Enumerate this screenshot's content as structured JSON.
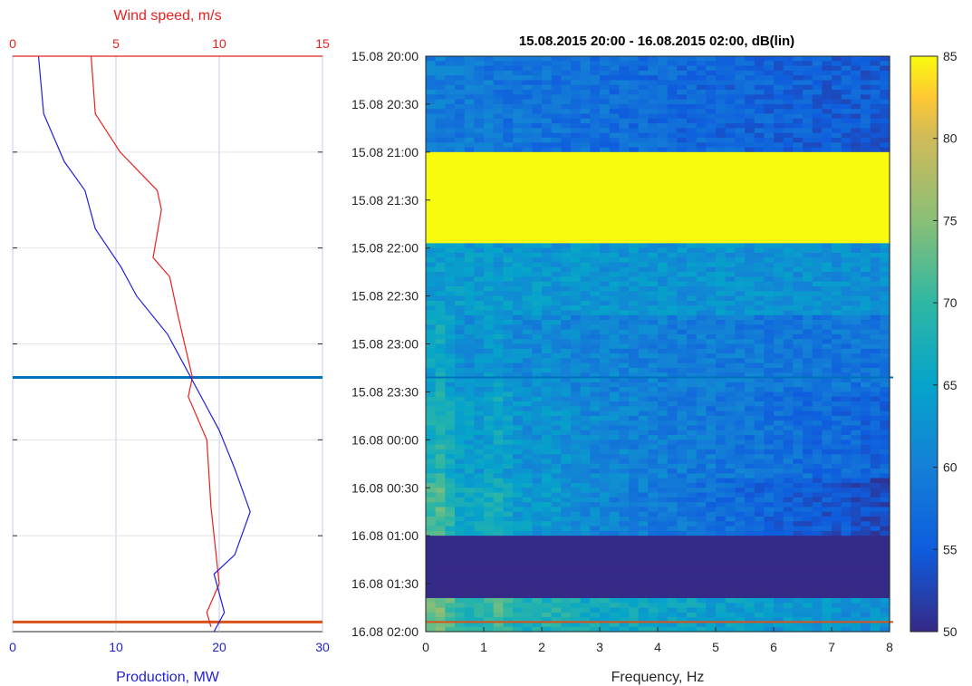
{
  "chart_data": [
    {
      "type": "line",
      "x_top": {
        "label": "Wind speed, m/s",
        "lim": [
          0,
          15
        ],
        "ticks": [
          "0",
          "5",
          "10",
          "15"
        ],
        "color": "#e8201f"
      },
      "x_bottom": {
        "label": "Production, MW",
        "lim": [
          0,
          30
        ],
        "ticks": [
          "0",
          "10",
          "20",
          "30"
        ],
        "color": "#1f1fd6"
      },
      "y_lim_hours": [
        0,
        6
      ],
      "grid": true,
      "series": [
        {
          "axis": "x_top",
          "color": "#e8201f",
          "points": [
            [
              3.8,
              0.0
            ],
            [
              4.0,
              0.6
            ],
            [
              5.2,
              1.0
            ],
            [
              7.0,
              1.4
            ],
            [
              7.2,
              1.6
            ],
            [
              6.8,
              2.1
            ],
            [
              7.6,
              2.3
            ],
            [
              8.0,
              2.7
            ],
            [
              8.7,
              3.35
            ],
            [
              8.5,
              3.55
            ],
            [
              9.4,
              4.0
            ],
            [
              9.6,
              4.7
            ],
            [
              10.0,
              5.5
            ],
            [
              9.4,
              5.8
            ],
            [
              9.6,
              5.95
            ]
          ]
        },
        {
          "axis": "x_bottom",
          "color": "#1f1fd6",
          "points": [
            [
              2.5,
              0.0
            ],
            [
              3.0,
              0.6
            ],
            [
              5.0,
              1.1
            ],
            [
              7.0,
              1.4
            ],
            [
              8.0,
              1.8
            ],
            [
              10.5,
              2.2
            ],
            [
              12.0,
              2.5
            ],
            [
              15.0,
              2.9
            ],
            [
              17.0,
              3.3
            ],
            [
              18.5,
              3.6
            ],
            [
              20.0,
              3.9
            ],
            [
              21.5,
              4.3
            ],
            [
              23.0,
              4.75
            ],
            [
              21.5,
              5.2
            ],
            [
              19.5,
              5.4
            ],
            [
              20.0,
              5.6
            ],
            [
              20.5,
              5.8
            ],
            [
              19.5,
              6.0
            ]
          ]
        }
      ],
      "hlines": [
        {
          "y": 3.35,
          "color": "#0072bd"
        },
        {
          "y": 5.9,
          "color": "#d95319"
        }
      ]
    },
    {
      "type": "heatmap",
      "title": "15.08.2015 20:00 - 16.08.2015 02:00, dB(lin)",
      "xlabel": "Frequency, Hz",
      "xlim": [
        0,
        8
      ],
      "x_ticks": [
        "0",
        "1",
        "2",
        "3",
        "4",
        "5",
        "6",
        "7",
        "8"
      ],
      "y_ticks": [
        "15.08 20:00",
        "15.08 20:30",
        "15.08 21:00",
        "15.08 21:30",
        "15.08 22:00",
        "15.08 22:30",
        "15.08 23:00",
        "15.08 23:30",
        "16.08 00:00",
        "16.08 00:30",
        "16.08 01:00",
        "16.08 01:30",
        "16.08 02:00"
      ],
      "clim": [
        50,
        85
      ],
      "colorbar_ticks": [
        "50",
        "55",
        "60",
        "65",
        "70",
        "75",
        "80",
        "85"
      ],
      "bands_hours": [
        {
          "from": 0.0,
          "to": 1.0,
          "base_db": 60,
          "high_freq_db": 55
        },
        {
          "from": 1.0,
          "to": 1.95,
          "base_db": 85,
          "high_freq_db": 85
        },
        {
          "from": 1.95,
          "to": 2.7,
          "base_db": 64,
          "high_freq_db": 62
        },
        {
          "from": 2.7,
          "to": 3.5,
          "base_db": 63,
          "high_freq_db": 58
        },
        {
          "from": 3.5,
          "to": 4.4,
          "base_db": 66,
          "high_freq_db": 56
        },
        {
          "from": 4.4,
          "to": 5.0,
          "base_db": 69,
          "high_freq_db": 53
        },
        {
          "from": 5.0,
          "to": 5.65,
          "base_db": 50,
          "high_freq_db": 50
        },
        {
          "from": 5.65,
          "to": 6.0,
          "base_db": 71,
          "high_freq_db": 62
        }
      ],
      "hlines": [
        {
          "y": 3.35,
          "color": "#0072bd"
        },
        {
          "y": 5.9,
          "color": "#d95319"
        }
      ]
    }
  ]
}
